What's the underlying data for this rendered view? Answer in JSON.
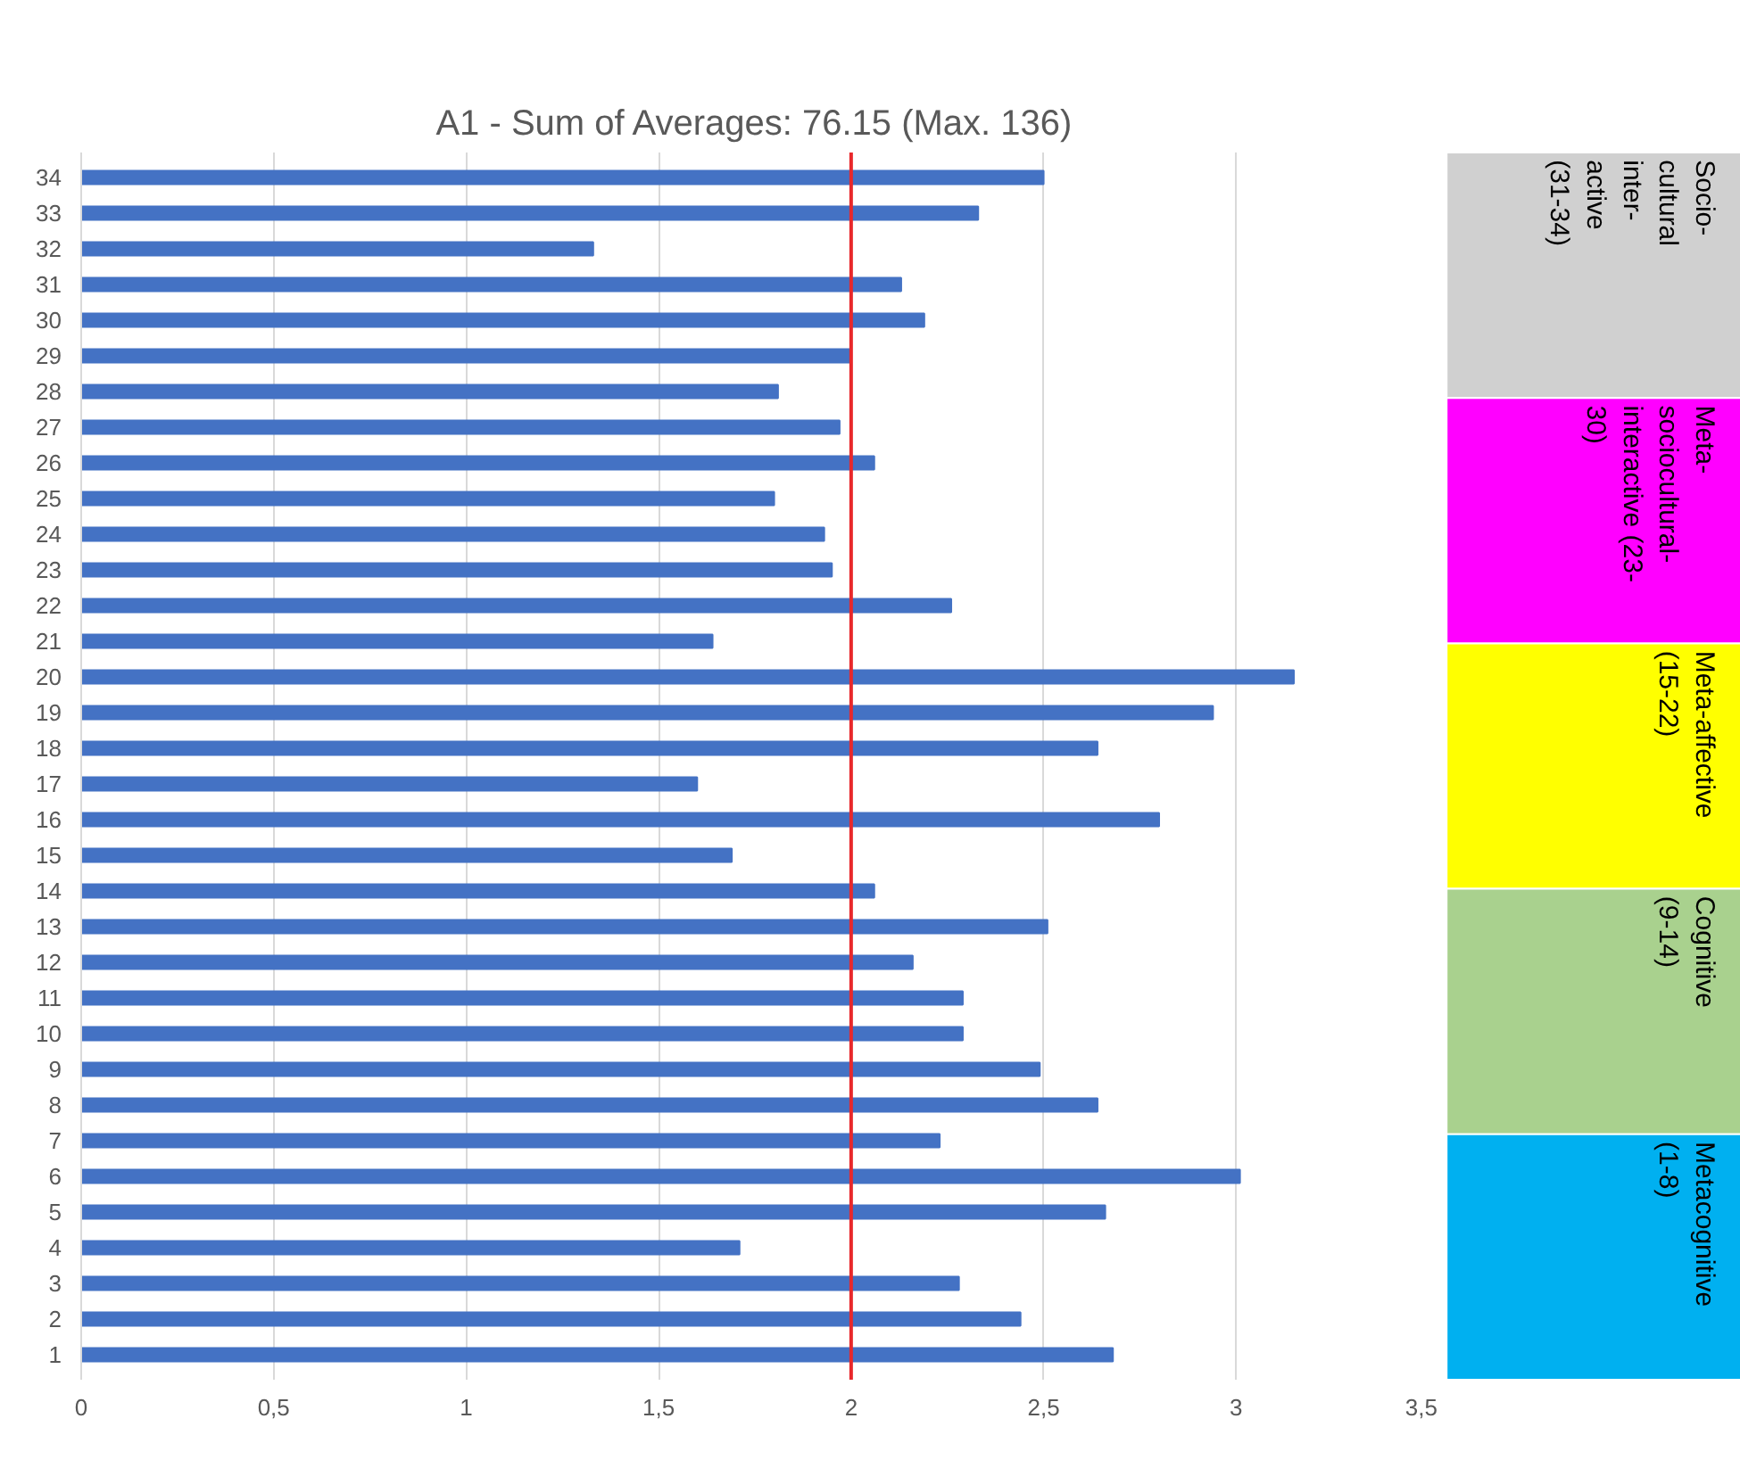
{
  "chart_data": [
    {
      "type": "bar",
      "orientation": "horizontal",
      "title": "A1 - Sum of Averages: 76.15 (Max. 136)",
      "categories": [
        "34",
        "33",
        "32",
        "31",
        "30",
        "29",
        "28",
        "27",
        "26",
        "25",
        "24",
        "23",
        "22",
        "21",
        "20",
        "19",
        "18",
        "17",
        "16",
        "15",
        "14",
        "13",
        "12",
        "11",
        "10",
        "9",
        "8",
        "7",
        "6",
        "5",
        "4",
        "3",
        "2",
        "1"
      ],
      "values": [
        2.5,
        2.33,
        1.33,
        2.13,
        2.19,
        2.0,
        1.81,
        1.97,
        2.06,
        1.8,
        1.93,
        1.95,
        2.26,
        1.64,
        3.15,
        2.94,
        2.64,
        1.6,
        2.8,
        1.69,
        2.06,
        2.51,
        2.16,
        2.29,
        2.29,
        2.49,
        2.64,
        2.23,
        3.01,
        2.66,
        1.71,
        2.28,
        2.44,
        2.68
      ],
      "color": "#4472c4",
      "xlim": [
        0,
        3.5
      ],
      "xticks": [
        0,
        {
          "value": 0.5,
          "label": "0,5"
        },
        1,
        {
          "value": 1.5,
          "label": "1,5"
        },
        2,
        {
          "value": 2.5,
          "label": "2,5"
        },
        3,
        {
          "value": 3.5,
          "label": "3,5"
        }
      ],
      "grid": "x",
      "ref_lines": [
        {
          "axis": "x",
          "value": 2,
          "color": "#e8282b"
        }
      ]
    },
    {
      "type": "other",
      "annotations": [
        "Socio-\ncultural\ninter-\nactive\n(31-34)",
        "Meta-\nsociocultural-\ninteractive (23-\n30)",
        "Meta-affective\n(15-22)",
        "Cognitive\n(9-14)",
        "Metacognitive\n(1-8)"
      ],
      "colors": [
        "#d0d0d0",
        "#ff00ff",
        "#ffff00",
        "#a9d18e",
        "#00b0f0"
      ]
    }
  ]
}
